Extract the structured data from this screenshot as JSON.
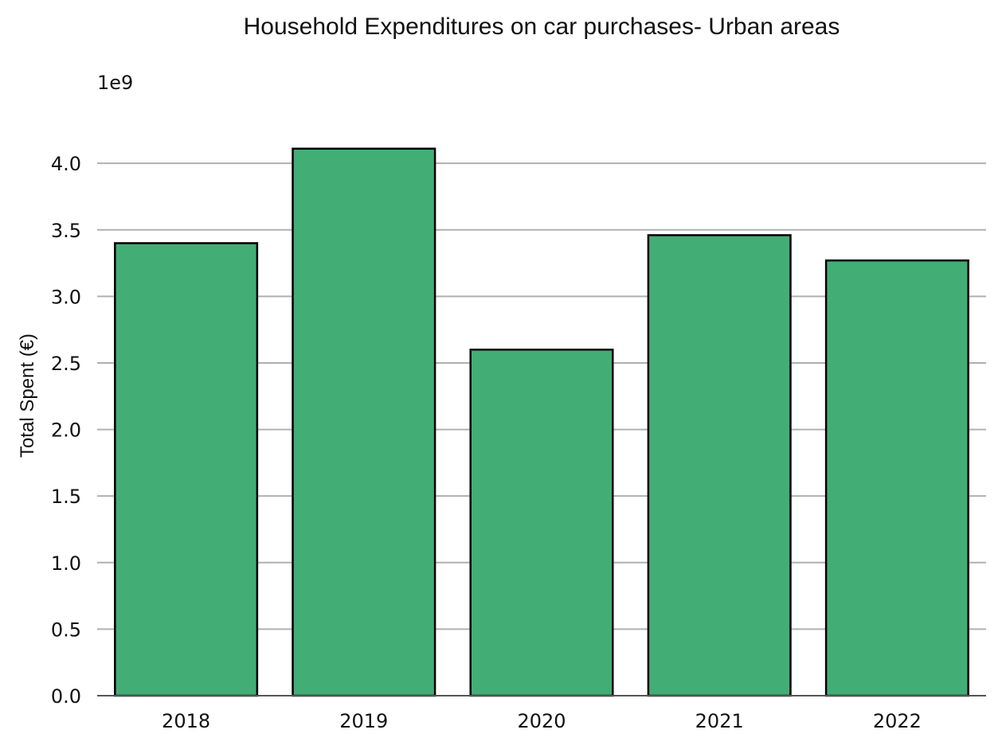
{
  "chart_data": {
    "type": "bar",
    "title": "Household Expenditures on car purchases- Urban areas",
    "xlabel": "",
    "ylabel": "Total Spent (€)",
    "y_offset_label": "1e9",
    "categories": [
      "2018",
      "2019",
      "2020",
      "2021",
      "2022"
    ],
    "values": [
      3400000000,
      4110000000,
      2600000000,
      3460000000,
      3270000000
    ],
    "ylim": [
      0,
      4300000000
    ],
    "y_ticks": [
      0,
      500000000,
      1000000000,
      1500000000,
      2000000000,
      2500000000,
      3000000000,
      3500000000,
      4000000000
    ],
    "y_tick_labels": [
      "0.0",
      "0.5",
      "1.0",
      "1.5",
      "2.0",
      "2.5",
      "3.0",
      "3.5",
      "4.0"
    ],
    "grid": "horizontal",
    "legend": "none",
    "colors": {
      "bar_fill": "#43ad76",
      "bar_edge": "#000000",
      "grid": "#b0b0b0",
      "axis": "#555555"
    }
  }
}
